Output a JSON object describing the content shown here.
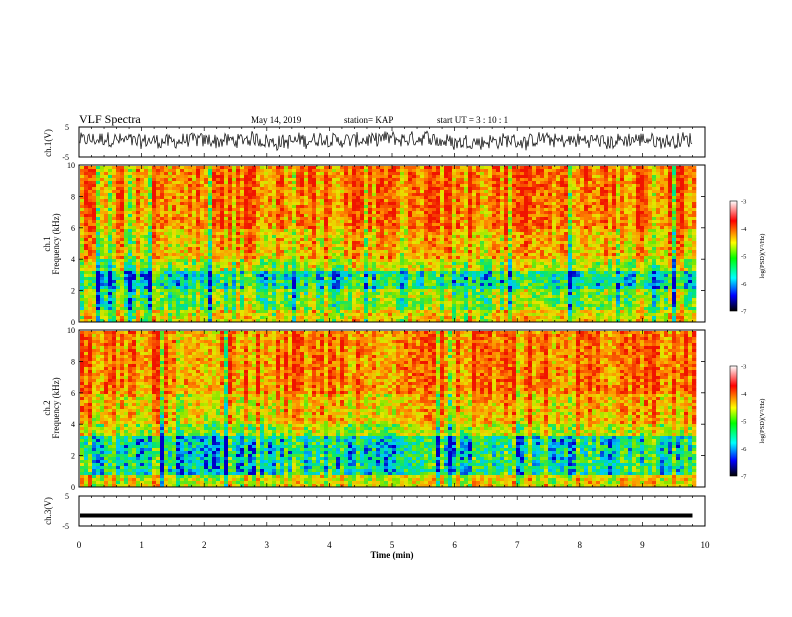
{
  "header": {
    "title": "VLF Spectra",
    "date": "May 14, 2019",
    "station": "station= KAP",
    "start": "start  UT =  3 : 10 : 1"
  },
  "chart_data": [
    {
      "type": "line",
      "ylabel": "ch.1(V)",
      "ylim": [
        -5,
        5
      ],
      "yticks": [
        "5",
        "-5"
      ],
      "xlim": [
        0,
        10
      ],
      "description_values": {
        "mean": 0.5,
        "amplitude": 2.5
      }
    },
    {
      "type": "heatmap",
      "ylabel_top": "ch.1",
      "ylabel": "Frequency (kHz)",
      "ylim": [
        0,
        10
      ],
      "yticks": [
        "0",
        "2",
        "4",
        "6",
        "8",
        "10"
      ],
      "xlim": [
        0,
        10
      ],
      "colorbar": {
        "label": "log(PSD)(V²/Hz)",
        "range": [
          -7,
          -3
        ],
        "ticks": [
          "-3",
          "-4",
          "-5",
          "-6",
          "-7"
        ]
      }
    },
    {
      "type": "heatmap",
      "ylabel_top": "ch.2",
      "ylabel": "Frequency (kHz)",
      "ylim": [
        0,
        10
      ],
      "yticks": [
        "0",
        "2",
        "4",
        "6",
        "8",
        "10"
      ],
      "xlim": [
        0,
        10
      ],
      "colorbar": {
        "label": "log(PSD)(V²/Hz)",
        "range": [
          -7,
          -3
        ],
        "ticks": [
          "-3",
          "-4",
          "-5",
          "-6",
          "-7"
        ]
      }
    },
    {
      "type": "line",
      "ylabel": "ch.3(V)",
      "ylim": [
        -5,
        5
      ],
      "yticks": [
        "5",
        "-5"
      ],
      "xlim": [
        0,
        10
      ],
      "constant_value": -1.5
    }
  ],
  "xaxis": {
    "label": "Time  (min)",
    "ticks": [
      "0",
      "1",
      "2",
      "3",
      "4",
      "5",
      "6",
      "7",
      "8",
      "9",
      "10"
    ],
    "data_end": 9.8
  }
}
